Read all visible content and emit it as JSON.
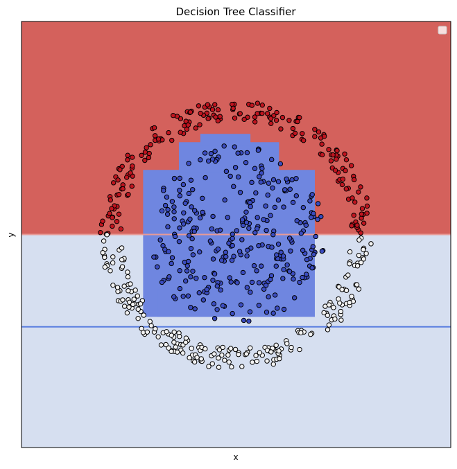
{
  "chart_data": {
    "type": "scatter",
    "title": "Decision Tree Classifier",
    "xlabel": "x",
    "ylabel": "y",
    "xlim": [
      -1.5,
      1.5
    ],
    "ylim": [
      -1.5,
      1.5
    ],
    "xticks": [],
    "yticks": [],
    "grid": false,
    "legend": {
      "placement": "top-right",
      "entries": []
    },
    "colors": {
      "top_region": "#d4615c",
      "bottom_region": "#d6dff0",
      "inner_region": "#6f86e0",
      "outer_points_top": "#c0141f",
      "outer_points_bottom": "#f2f2f2",
      "inner_points": "#3b4cc0",
      "boundary_blue": "#5b7fe0",
      "boundary_red": "#e89a96",
      "edge": "#000000"
    },
    "split_lines": [
      {
        "orientation": "horizontal",
        "y": 0.0,
        "color": "#e89a96"
      },
      {
        "orientation": "horizontal",
        "y": -0.65,
        "color": "#5b7fe0"
      }
    ],
    "regions": [
      {
        "label": "upper",
        "y_range": [
          0.0,
          1.5
        ],
        "color": "#d4615c"
      },
      {
        "label": "lower",
        "y_range": [
          -1.5,
          0.0
        ],
        "color": "#d6dff0"
      },
      {
        "label": "inner",
        "x_range": [
          -0.65,
          0.55
        ],
        "y_range": [
          -0.58,
          0.65
        ],
        "color": "#6f86e0"
      }
    ],
    "series": [
      {
        "class": "outer",
        "shape": "ring",
        "radius_range": [
          0.8,
          0.95
        ],
        "count": 400,
        "color_above_y0": "#c0141f",
        "color_below_y0": "#f2f2f2"
      },
      {
        "class": "inner",
        "shape": "disk",
        "radius_range": [
          0.0,
          0.63
        ],
        "count": 300,
        "color": "#3b4cc0"
      }
    ]
  }
}
